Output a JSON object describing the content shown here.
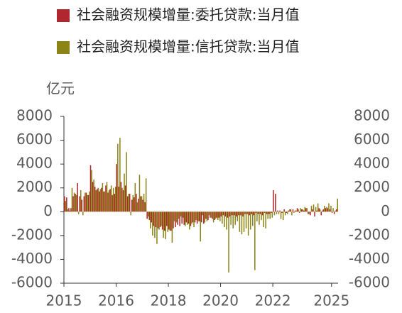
{
  "chart_data": {
    "type": "bar",
    "y_unit_label": "亿元",
    "categories": [
      "2015",
      null,
      null,
      null,
      null,
      null,
      null,
      null,
      null,
      null,
      null,
      null,
      null,
      null,
      null,
      null,
      null,
      null,
      null,
      null,
      null,
      null,
      null,
      null,
      "2016",
      null,
      null,
      null,
      null,
      null,
      null,
      null,
      null,
      null,
      null,
      null,
      null,
      null,
      null,
      null,
      null,
      null,
      null,
      null,
      null,
      null,
      null,
      null,
      "2018",
      null,
      null,
      null,
      null,
      null,
      null,
      null,
      null,
      null,
      null,
      null,
      null,
      null,
      null,
      null,
      null,
      null,
      null,
      null,
      null,
      null,
      null,
      null,
      "2020",
      null,
      null,
      null,
      null,
      null,
      null,
      null,
      null,
      null,
      null,
      null,
      null,
      null,
      null,
      null,
      null,
      null,
      null,
      null,
      null,
      null,
      null,
      null,
      "2022",
      null,
      null,
      null,
      null,
      null,
      null,
      null,
      null,
      null,
      null,
      null,
      null,
      null,
      null,
      null,
      null,
      null,
      null,
      null,
      null,
      null,
      null,
      null,
      null,
      null,
      null,
      "2025",
      null,
      null
    ],
    "series": [
      {
        "name": "社会融资规模增量:委托贷款:当月值",
        "color": "#b0282d",
        "values": [
          1300,
          1200,
          300,
          300,
          1300,
          1500,
          2400,
          1300,
          1000,
          1300,
          1600,
          1400,
          3900,
          2500,
          2100,
          1900,
          1700,
          2000,
          1700,
          2200,
          1600,
          1900,
          1400,
          1500,
          4000,
          2100,
          2500,
          1800,
          2200,
          1300,
          1500,
          1000,
          1200,
          1500,
          1100,
          1300,
          1000,
          800,
          -600,
          -700,
          -900,
          -1200,
          -1300,
          -1400,
          -1300,
          -1500,
          -1600,
          -1200,
          -1500,
          -1600,
          -1400,
          -1300,
          -1100,
          -1200,
          -1000,
          -1100,
          -900,
          -1000,
          -1200,
          -900,
          -900,
          -1000,
          -800,
          -900,
          -1000,
          -600,
          -700,
          -500,
          -600,
          -700,
          -500,
          -500,
          -400,
          -300,
          -400,
          -500,
          -400,
          -300,
          -300,
          -400,
          -300,
          -300,
          -400,
          -200,
          -200,
          -300,
          -200,
          -300,
          -100,
          -200,
          -200,
          -300,
          -100,
          -200,
          -200,
          -100,
          1800,
          1500,
          100,
          100,
          -100,
          200,
          -100,
          100,
          200,
          200,
          100,
          300,
          -100,
          200,
          100,
          300,
          -200,
          -300,
          200,
          -400,
          100,
          300,
          -300,
          200,
          300,
          300,
          200,
          -100,
          -200,
          200
        ]
      },
      {
        "name": "社会融资规模增量:信托贷款:当月值",
        "color": "#8c8417",
        "values": [
          900,
          200,
          100,
          2000,
          1600,
          1400,
          -200,
          1800,
          -300,
          1600,
          1400,
          1700,
          3500,
          2700,
          1800,
          2000,
          1900,
          2400,
          1700,
          2500,
          1800,
          2200,
          2000,
          2100,
          5700,
          6200,
          2000,
          3200,
          5000,
          1500,
          -300,
          1400,
          2400,
          800,
          3100,
          1300,
          1500,
          2800,
          -400,
          -1400,
          -2000,
          -2200,
          -2700,
          -1500,
          -1200,
          -2200,
          -2300,
          -1700,
          -1600,
          -2600,
          -800,
          -900,
          -600,
          -400,
          -500,
          -1200,
          -1100,
          -1500,
          -1000,
          -1300,
          -700,
          -800,
          -2500,
          -300,
          -900,
          -800,
          -300,
          -500,
          -900,
          -600,
          -700,
          -800,
          -1000,
          -1300,
          -1500,
          -5100,
          -1100,
          -1400,
          -1100,
          -800,
          -1700,
          -1900,
          -1700,
          -1400,
          -2000,
          -1500,
          -1200,
          -4900,
          -800,
          -1100,
          -700,
          -1300,
          -1400,
          -600,
          -600,
          -500,
          -300,
          -200,
          -200,
          -600,
          -700,
          -300,
          -200,
          200,
          -300,
          -100,
          100,
          200,
          300,
          200,
          400,
          300,
          -200,
          500,
          600,
          400,
          700,
          200,
          100,
          500,
          400,
          700,
          500,
          300,
          100,
          1100
        ]
      }
    ],
    "ylim": [
      -6000,
      8000
    ],
    "yticks": [
      -6000,
      -4000,
      -2000,
      0,
      2000,
      4000,
      6000,
      8000
    ],
    "y2lim": [
      -6000,
      8000
    ],
    "y2ticks": [
      -6000,
      -4000,
      -2000,
      0,
      2000,
      4000,
      6000,
      8000
    ],
    "legend": "top"
  }
}
